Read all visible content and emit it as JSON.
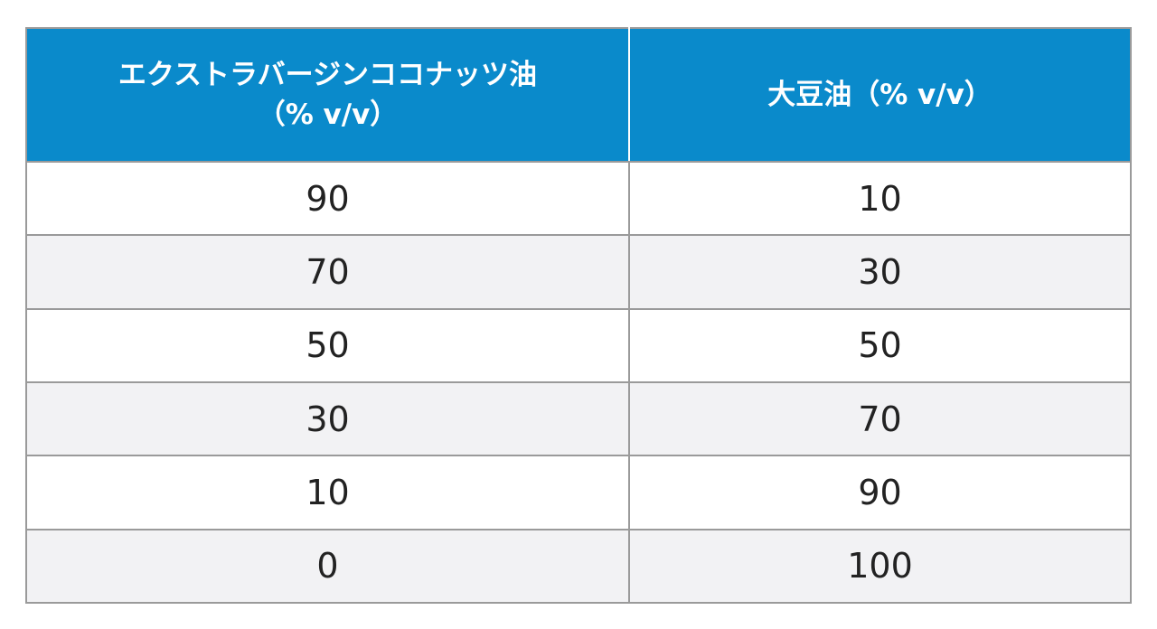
{
  "table": {
    "header": {
      "col1_line1": "エクストラバージンココナッツ油",
      "col1_line2": "（% v/v）",
      "col2": "大豆油（% v/v）"
    },
    "rows": [
      {
        "coconut": "90",
        "soybean": "10"
      },
      {
        "coconut": "70",
        "soybean": "30"
      },
      {
        "coconut": "50",
        "soybean": "50"
      },
      {
        "coconut": "30",
        "soybean": "70"
      },
      {
        "coconut": "10",
        "soybean": "90"
      },
      {
        "coconut": "0",
        "soybean": "100"
      }
    ]
  },
  "colors": {
    "header_bg": "#0a8acb",
    "header_text": "#ffffff",
    "stripe": "#f2f2f4",
    "border": "#9a9a9a"
  }
}
